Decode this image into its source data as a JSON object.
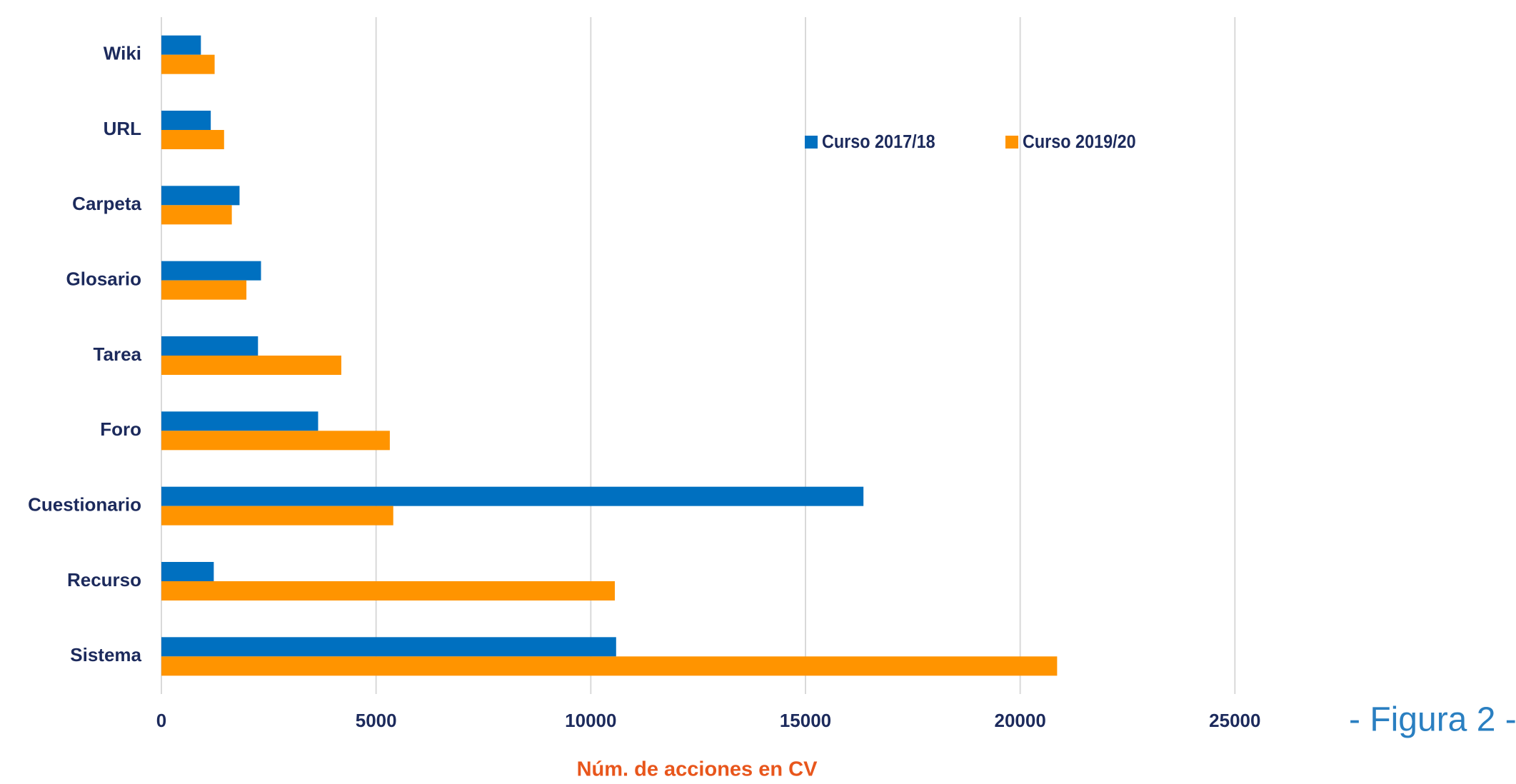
{
  "chart_data": {
    "type": "hbar",
    "categories": [
      "Wiki",
      "URL",
      "Carpeta",
      "Glosario",
      "Tarea",
      "Foro",
      "Cuestionario",
      "Recurso",
      "Sistema"
    ],
    "series": [
      {
        "name": "Curso 2017/18",
        "color": "#0070c0",
        "values": [
          920,
          1150,
          1820,
          2320,
          2250,
          3650,
          16350,
          1220,
          10590
        ]
      },
      {
        "name": "Curso 2019/20",
        "color": "#ff9400",
        "values": [
          1240,
          1460,
          1640,
          1980,
          4190,
          5320,
          5400,
          10560,
          20860
        ]
      }
    ],
    "xlabel": "Núm. de acciones en CV",
    "xlim": [
      0,
      30000
    ],
    "xticks": [
      0,
      5000,
      10000,
      15000,
      20000,
      25000
    ],
    "grid": true,
    "legend": "top",
    "annotation": "- Figura 2 -"
  }
}
